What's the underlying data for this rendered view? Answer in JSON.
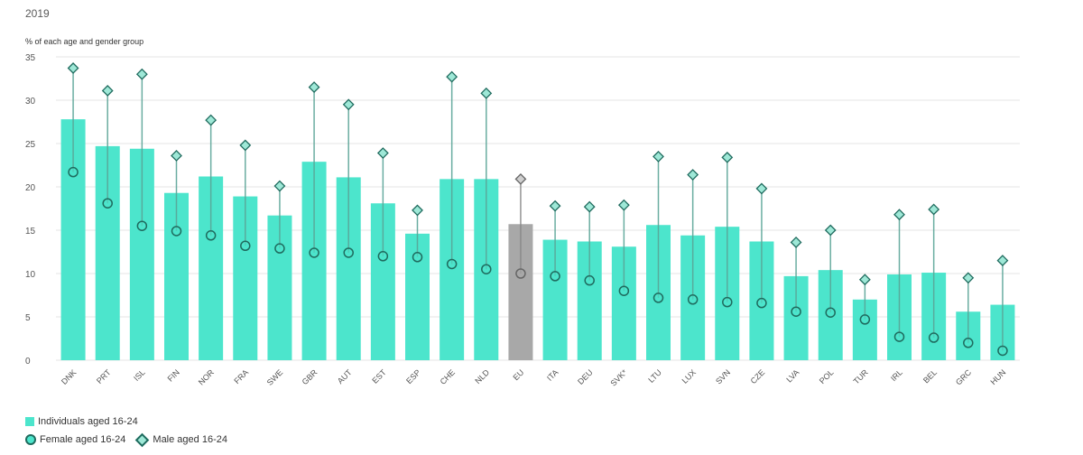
{
  "chart_data": {
    "type": "bar",
    "title": "2019",
    "ylabel": "% of each age and gender group",
    "ylim": [
      0,
      35
    ],
    "yticks": [
      0,
      5,
      10,
      15,
      20,
      25,
      30,
      35
    ],
    "grid": true,
    "legend_position": "bottom-left",
    "categories": [
      "DNK",
      "PRT",
      "ISL",
      "FIN",
      "NOR",
      "FRA",
      "SWE",
      "GBR",
      "AUT",
      "EST",
      "ESP",
      "CHE",
      "NLD",
      "EU",
      "ITA",
      "DEU",
      "SVK*",
      "LTU",
      "LUX",
      "SVN",
      "CZE",
      "LVA",
      "POL",
      "TUR",
      "IRL",
      "BEL",
      "GRC",
      "HUN"
    ],
    "highlight_category": "EU",
    "series": [
      {
        "name": "Individuals aged 16-24",
        "kind": "bar",
        "values": [
          27.8,
          24.7,
          24.4,
          19.3,
          21.2,
          18.9,
          16.7,
          22.9,
          21.1,
          18.1,
          14.6,
          20.9,
          20.9,
          15.7,
          13.9,
          13.7,
          13.1,
          15.6,
          14.4,
          15.4,
          13.7,
          9.7,
          10.4,
          7.0,
          9.9,
          10.1,
          5.6,
          6.4
        ]
      },
      {
        "name": "Female aged 16-24",
        "kind": "circle",
        "values": [
          21.7,
          18.1,
          15.5,
          14.9,
          14.4,
          13.2,
          12.9,
          12.4,
          12.4,
          12.0,
          11.9,
          11.1,
          10.5,
          10.0,
          9.7,
          9.2,
          8.0,
          7.2,
          7.0,
          6.7,
          6.6,
          5.6,
          5.5,
          4.7,
          2.7,
          2.6,
          2.0,
          1.1
        ]
      },
      {
        "name": "Male aged 16-24",
        "kind": "diamond",
        "values": [
          33.7,
          31.1,
          33.0,
          23.6,
          27.7,
          24.8,
          20.1,
          31.5,
          29.5,
          23.9,
          17.3,
          32.7,
          30.8,
          20.9,
          17.8,
          17.7,
          17.9,
          23.5,
          21.4,
          23.4,
          19.8,
          13.6,
          15.0,
          9.3,
          16.8,
          17.4,
          9.5,
          11.5
        ]
      }
    ]
  },
  "colors": {
    "bar": "#4ce5cc",
    "bar_highlight": "#a8a8a8",
    "marker_stroke": "#1f6b5e",
    "marker_stroke_highlight": "#666666",
    "diamond_fill": "#9ee8d7",
    "diamond_fill_highlight": "#cfcfcf",
    "gridline": "#e6e6e6",
    "axis_text": "#555555"
  },
  "legend": {
    "bar_label": "Individuals aged 16-24",
    "female_label": "Female aged 16-24",
    "male_label": "Male aged 16-24"
  }
}
